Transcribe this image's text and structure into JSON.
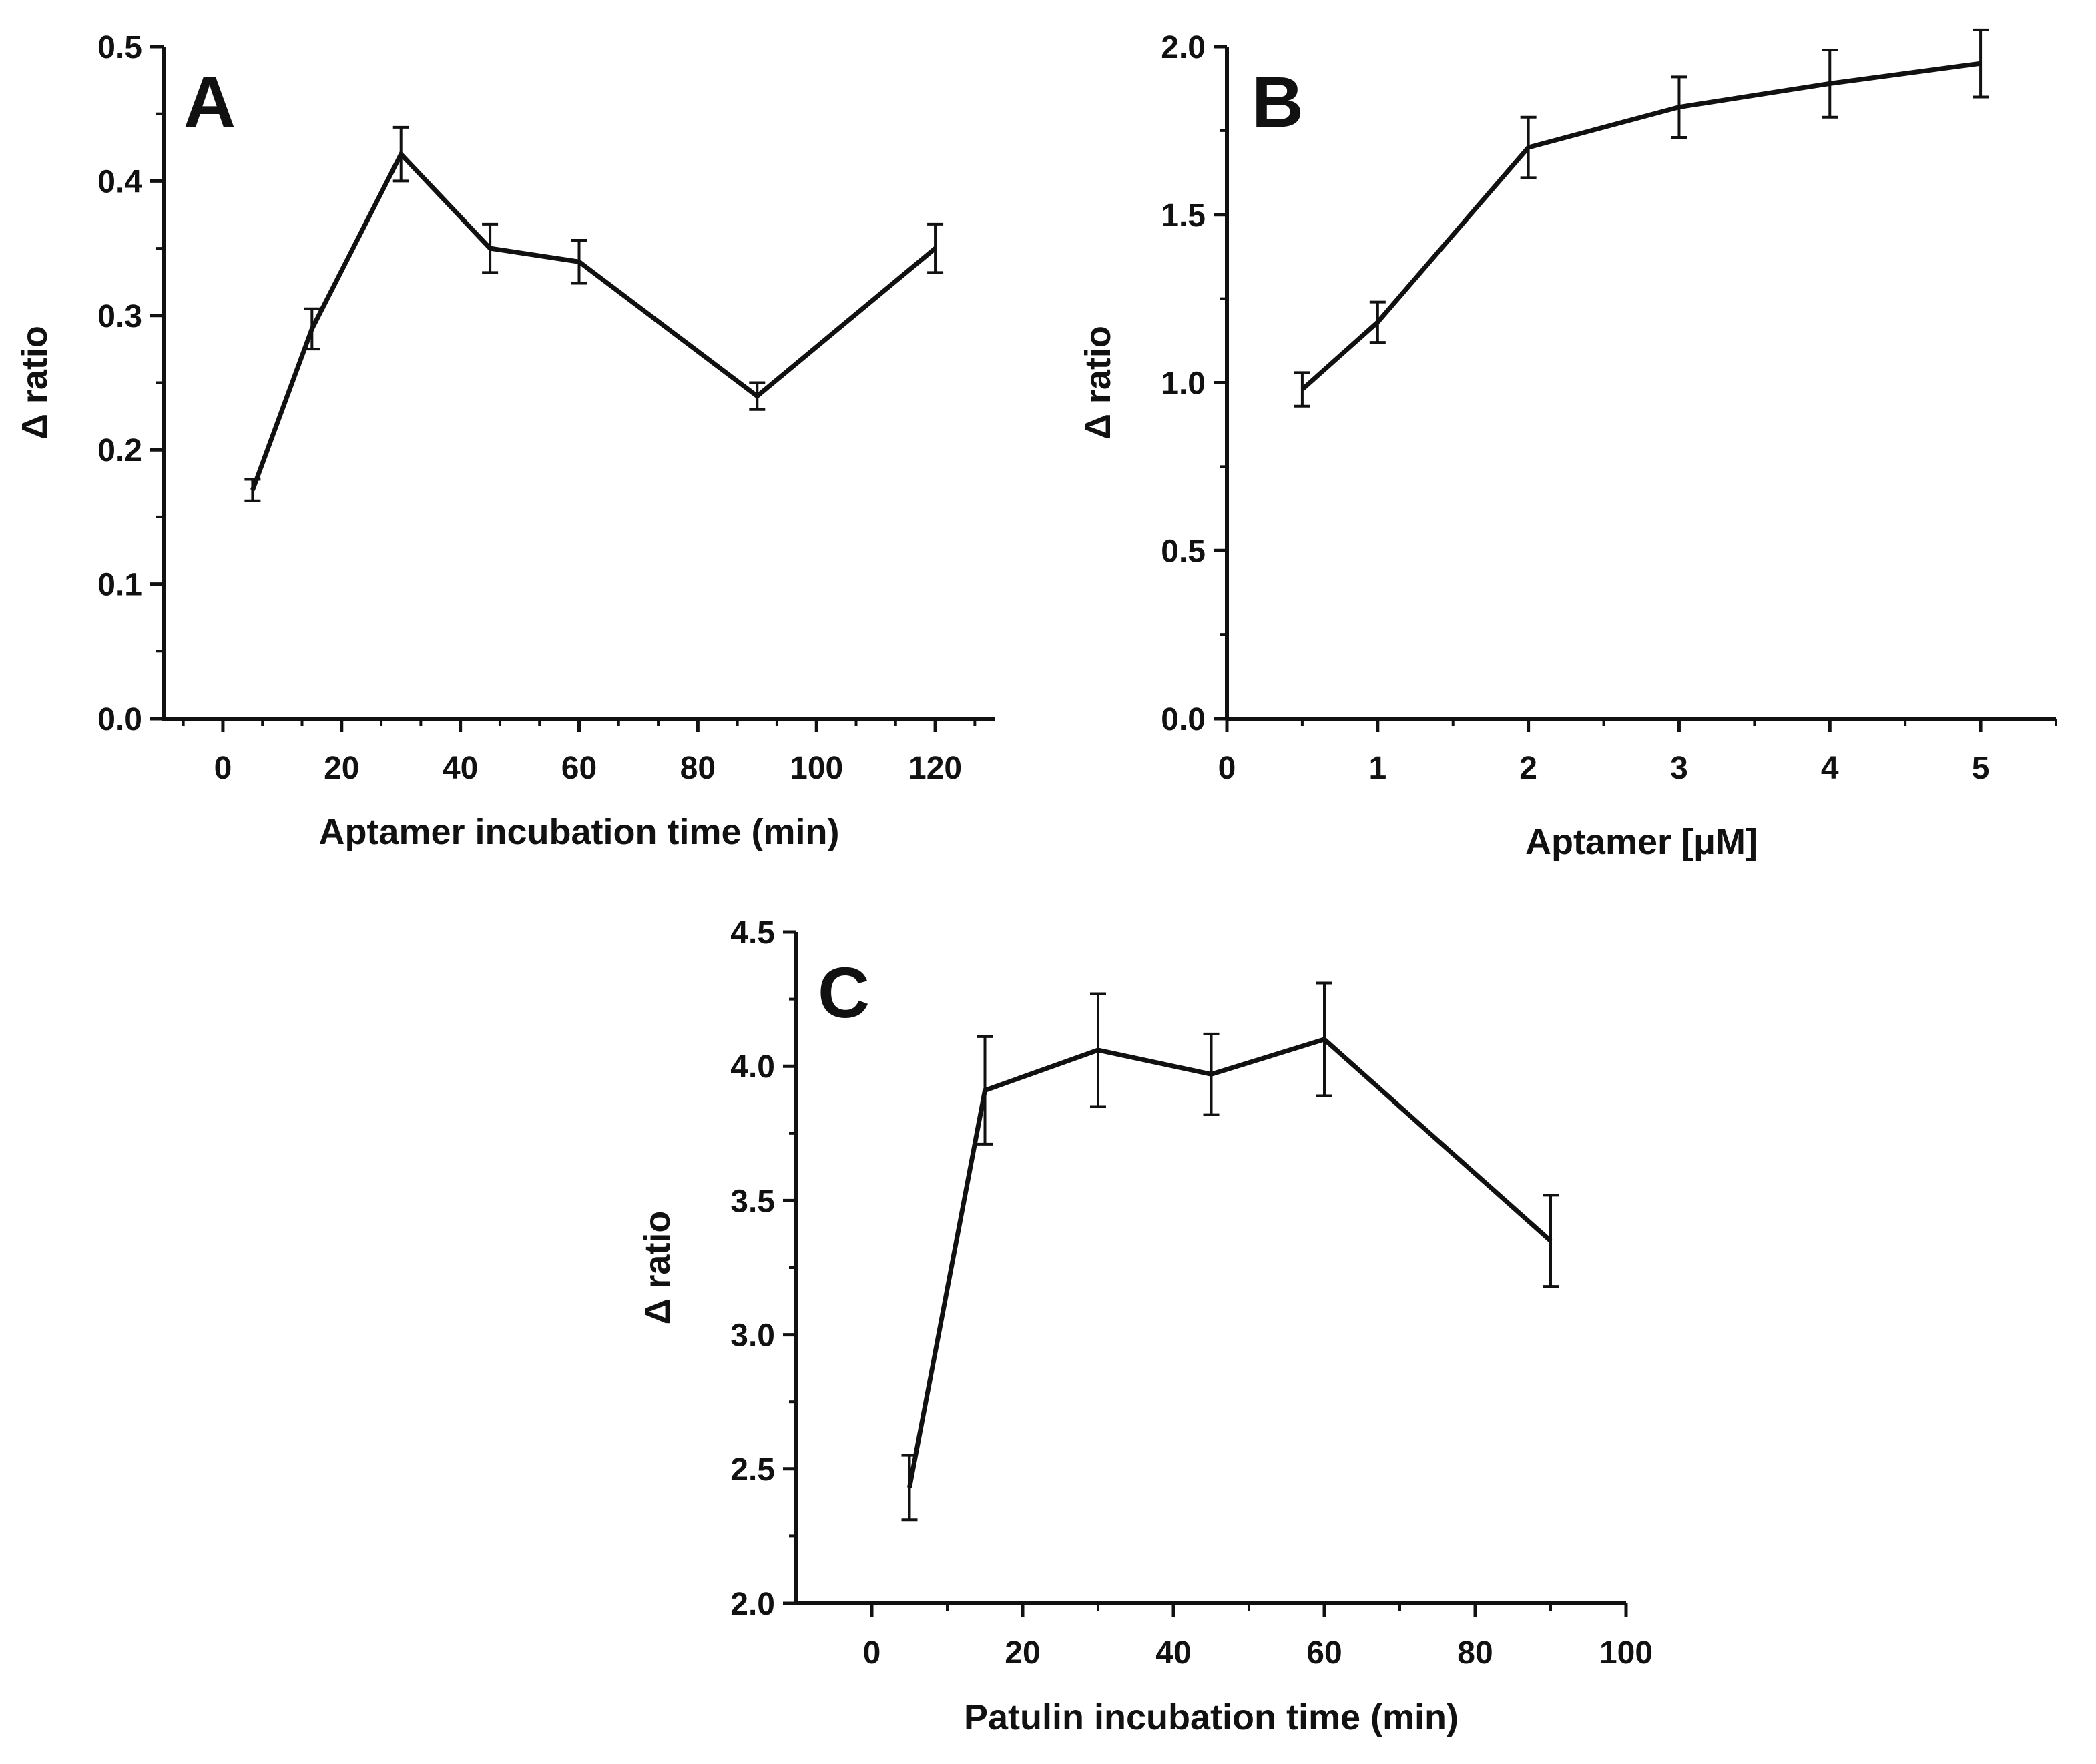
{
  "chart_data": [
    {
      "type": "line",
      "panel_label": "A",
      "xlabel": "Aptamer incubation time (min)",
      "ylabel": "Δ ratio",
      "xlim": [
        -10,
        130
      ],
      "ylim": [
        0,
        0.5
      ],
      "xticks": [
        0,
        20,
        40,
        60,
        80,
        100,
        120
      ],
      "xtick_labels": [
        "0",
        "20",
        "40",
        "60",
        "80",
        "100",
        "120"
      ],
      "yticks": [
        0.0,
        0.1,
        0.2,
        0.3,
        0.4,
        0.5
      ],
      "ytick_labels": [
        "0.0",
        "0.1",
        "0.2",
        "0.3",
        "0.4",
        "0.5"
      ],
      "series": [
        {
          "name": "Aptamer incubation time",
          "x": [
            5,
            15,
            30,
            45,
            60,
            90,
            120
          ],
          "y": [
            0.17,
            0.29,
            0.42,
            0.35,
            0.34,
            0.24,
            0.35
          ],
          "error": [
            0.008,
            0.015,
            0.02,
            0.018,
            0.016,
            0.01,
            0.018
          ]
        }
      ]
    },
    {
      "type": "line",
      "panel_label": "B",
      "xlabel": "Aptamer [μM]",
      "ylabel": "Δ ratio",
      "xlim": [
        0,
        5.5
      ],
      "ylim": [
        0,
        2.0
      ],
      "xticks": [
        0,
        1,
        2,
        3,
        4,
        5
      ],
      "xtick_labels": [
        "0",
        "1",
        "2",
        "3",
        "4",
        "5"
      ],
      "yticks": [
        0.0,
        0.5,
        1.0,
        1.5,
        2.0
      ],
      "ytick_labels": [
        "0.0",
        "0.5",
        "1.0",
        "1.5",
        "2.0"
      ],
      "series": [
        {
          "name": "Aptamer concentration",
          "x": [
            0.5,
            1,
            2,
            3,
            4,
            5
          ],
          "y": [
            0.98,
            1.18,
            1.7,
            1.82,
            1.89,
            1.95
          ],
          "error": [
            0.05,
            0.06,
            0.09,
            0.09,
            0.1,
            0.1
          ]
        }
      ]
    },
    {
      "type": "line",
      "panel_label": "C",
      "xlabel": "Patulin incubation time (min)",
      "ylabel": "Δ ratio",
      "xlim": [
        -10,
        100
      ],
      "ylim": [
        2.0,
        4.5
      ],
      "xticks": [
        0,
        20,
        40,
        60,
        80,
        100
      ],
      "xtick_labels": [
        "0",
        "20",
        "40",
        "60",
        "80",
        "100"
      ],
      "yticks": [
        2.0,
        2.5,
        3.0,
        3.5,
        4.0,
        4.5
      ],
      "ytick_labels": [
        "2.0",
        "2.5",
        "3.0",
        "3.5",
        "4.0",
        "4.5"
      ],
      "series": [
        {
          "name": "Patulin incubation time",
          "x": [
            5,
            15,
            30,
            45,
            60,
            90
          ],
          "y": [
            2.43,
            3.91,
            4.06,
            3.97,
            4.1,
            3.35
          ],
          "error": [
            0.12,
            0.2,
            0.21,
            0.15,
            0.21,
            0.17
          ]
        }
      ]
    }
  ]
}
